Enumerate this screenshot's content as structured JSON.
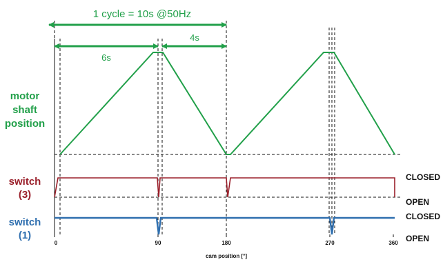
{
  "header": {
    "cycle_label": "1 cycle = 10s @50Hz",
    "phase1_label": "6s",
    "phase2_label": "4s"
  },
  "labels": {
    "motor": [
      "motor",
      "shaft",
      "position"
    ],
    "switch3": [
      "switch",
      "(3)"
    ],
    "switch1": [
      "switch",
      "(1)"
    ],
    "closed": "CLOSED",
    "open": "OPEN",
    "xaxis_title": "cam position [°]"
  },
  "axis": {
    "ticks": [
      "0",
      "90",
      "180",
      "270",
      "360"
    ]
  },
  "colors": {
    "motor": "#22a04a",
    "switch3": "#9a1f2a",
    "switch1": "#2f6faf",
    "arrow": "#22a04a"
  }
}
